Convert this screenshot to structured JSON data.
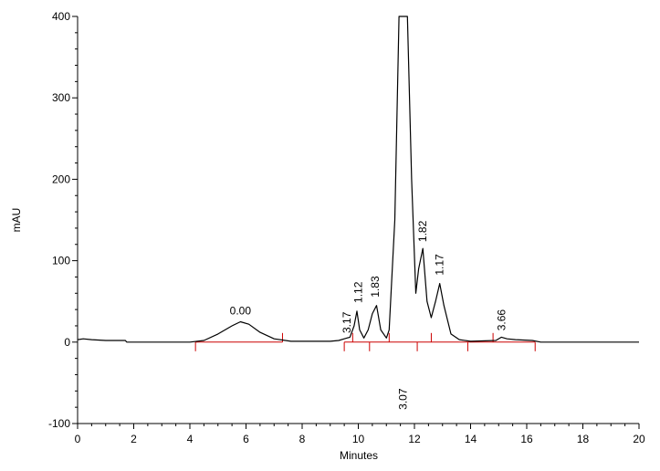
{
  "chart_data": {
    "type": "line",
    "title": "",
    "xlabel": "Minutes",
    "ylabel": "mAU",
    "xlim": [
      0,
      20
    ],
    "ylim": [
      -100,
      400
    ],
    "x_ticks": [
      "0",
      "2",
      "4",
      "6",
      "8",
      "10",
      "12",
      "14",
      "16",
      "18",
      "20"
    ],
    "y_ticks": [
      "-100",
      "0",
      "100",
      "200",
      "300",
      "400"
    ],
    "grid": false,
    "legend": "none",
    "colors": {
      "trace": "#000000",
      "baseline": "#cc0000",
      "axes": "#000000"
    },
    "series": [
      {
        "x": [
          0,
          0.2,
          0.5,
          1.0,
          1.7,
          1.75,
          4.0,
          4.5,
          5.0,
          5.5,
          5.8,
          6.1,
          6.5,
          7.0,
          7.6,
          9.0,
          9.3,
          9.5,
          9.7,
          9.85,
          9.95,
          10.05,
          10.2,
          10.35,
          10.5,
          10.65,
          10.8,
          11.0,
          11.1,
          11.3,
          11.45,
          11.55,
          11.75,
          11.9,
          12.05,
          12.15,
          12.3,
          12.45,
          12.6,
          12.75,
          12.9,
          13.05,
          13.3,
          13.6,
          14.0,
          14.9,
          15.1,
          15.3,
          15.6,
          16.2,
          16.5,
          20.0
        ],
        "y": [
          3,
          4,
          3,
          2,
          2,
          0,
          0,
          2,
          10,
          20,
          25,
          22,
          12,
          4,
          1,
          1,
          2,
          4,
          6,
          20,
          38,
          15,
          5,
          15,
          35,
          45,
          15,
          5,
          15,
          150,
          400,
          400,
          400,
          200,
          60,
          90,
          115,
          50,
          30,
          50,
          72,
          45,
          10,
          3,
          1,
          2,
          6,
          4,
          3,
          2,
          0,
          0
        ]
      }
    ],
    "baselines": [
      {
        "x": [
          4.2,
          7.3
        ],
        "y": [
          0,
          0
        ]
      },
      {
        "x": [
          9.5,
          16.3
        ],
        "y": [
          0,
          0
        ]
      }
    ],
    "baseline_marks": [
      4.2,
      7.3,
      9.5,
      9.8,
      10.4,
      11.1,
      12.1,
      12.6,
      13.9,
      14.8,
      16.3
    ],
    "peak_labels": [
      {
        "text": "0.00",
        "x": 5.8,
        "y": 34
      },
      {
        "text": "3.17",
        "x": 9.6,
        "y": 11
      },
      {
        "text": "1.12",
        "x": 10.0,
        "y": 48
      },
      {
        "text": "1.83",
        "x": 10.6,
        "y": 55
      },
      {
        "text": "3.07",
        "x": 11.6,
        "y": -83
      },
      {
        "text": "1.82",
        "x": 12.3,
        "y": 123
      },
      {
        "text": "1.17",
        "x": 12.9,
        "y": 82
      },
      {
        "text": "3.66",
        "x": 15.1,
        "y": 14
      }
    ]
  }
}
